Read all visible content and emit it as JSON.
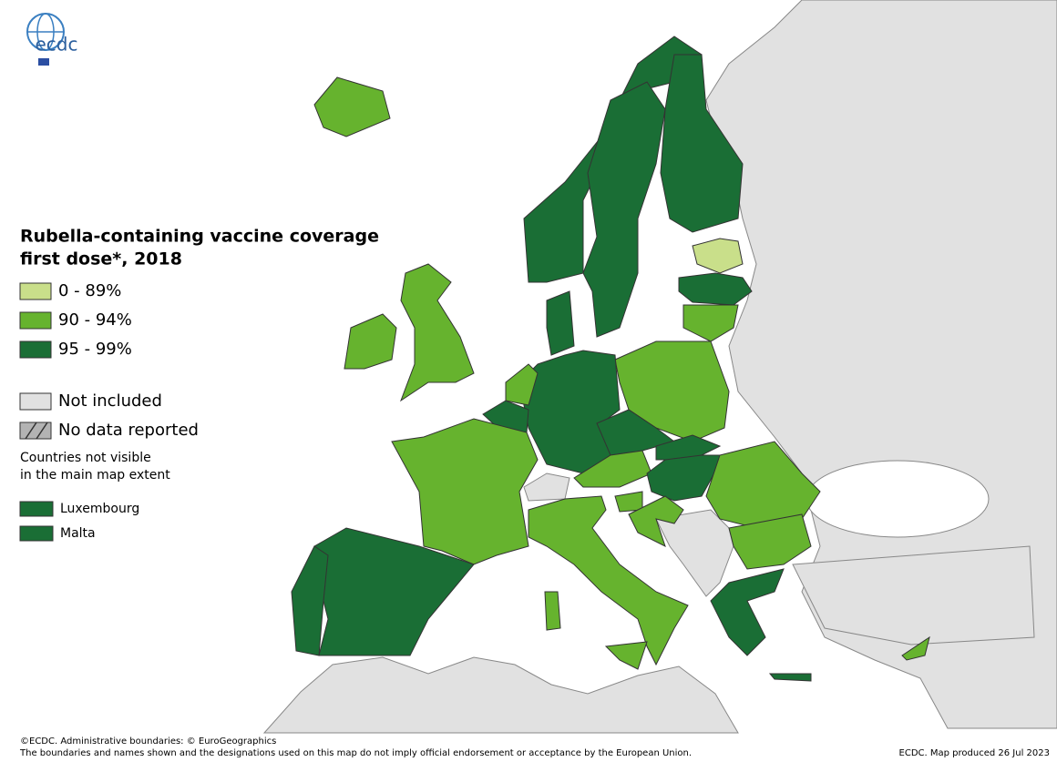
{
  "logo": "ecdc",
  "title": [
    "Rubella-containing vaccine coverage",
    "first dose*, 2018"
  ],
  "legend": [
    {
      "label": "0 - 89%",
      "color": "#c9df8a"
    },
    {
      "label": "90 - 94%",
      "color": "#66b32e"
    },
    {
      "label": "95 - 99%",
      "color": "#1a6e35"
    },
    {
      "label": "Not included",
      "color": "#e1e1e1"
    },
    {
      "label": "No data reported",
      "color": "#b3b3b3"
    }
  ],
  "note": [
    "Countries not visible",
    "in the main map extent"
  ],
  "small_countries": [
    {
      "label": "Luxembourg",
      "color": "#1a6e35"
    },
    {
      "label": "Malta",
      "color": "#1a6e35"
    }
  ],
  "footer": {
    "copyright": "©ECDC. Administrative boundaries: © EuroGeographics",
    "disclaimer": "The boundaries and names shown and the designations used on this map do not imply official endorsement or acceptance by the European Union.",
    "produced": "ECDC. Map produced 26 Jul 2023"
  }
}
